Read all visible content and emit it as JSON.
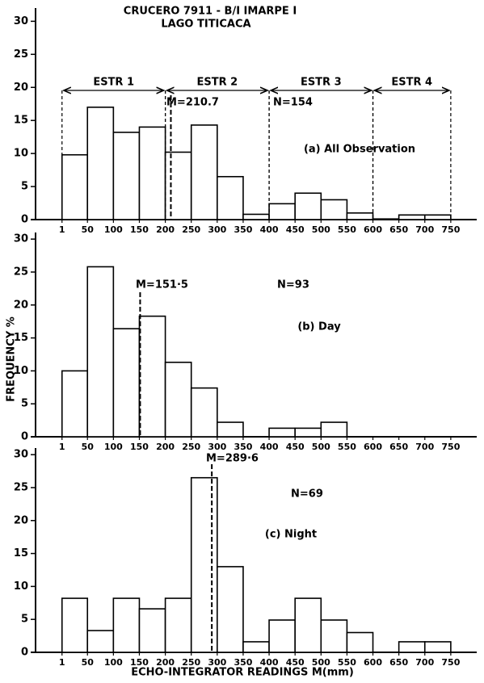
{
  "chart_data": [
    {
      "type": "histogram",
      "title": "CRUCERO 7911 - B/I IMARPE I",
      "subtitle": "LAGO TITICACA",
      "bins": [
        1,
        50,
        100,
        150,
        200,
        250,
        300,
        350,
        400,
        450,
        500,
        550,
        600,
        650,
        700,
        750
      ],
      "values": [
        9.8,
        17,
        13.2,
        14,
        10.2,
        14.3,
        6.5,
        0.8,
        2.4,
        4,
        3,
        1,
        0.1,
        0.7,
        0.7
      ],
      "xlim": [
        -50,
        800
      ],
      "xticks": [
        1,
        50,
        100,
        150,
        200,
        250,
        300,
        350,
        400,
        450,
        500,
        550,
        600,
        650,
        700,
        750
      ],
      "ylim": [
        0,
        32
      ],
      "yticks": [
        0,
        5,
        10,
        15,
        20,
        25,
        30
      ],
      "grid": false,
      "color": "#ffffff",
      "mean": {
        "value": 210.7,
        "label": "M=210.7"
      },
      "n_label": "N=154",
      "panel_label": "(a) All Observation",
      "strata": [
        {
          "label": "ESTR 1",
          "range": [
            1,
            200
          ]
        },
        {
          "label": "ESTR 2",
          "range": [
            200,
            400
          ]
        },
        {
          "label": "ESTR 3",
          "range": [
            400,
            600
          ]
        },
        {
          "label": "ESTR 4",
          "range": [
            600,
            750
          ]
        }
      ]
    },
    {
      "type": "histogram",
      "ylabel": "FREQUENCY %",
      "bins": [
        1,
        50,
        100,
        150,
        200,
        250,
        300,
        350,
        400,
        450,
        500,
        550,
        600,
        650,
        700,
        750
      ],
      "values": [
        10,
        25.8,
        16.4,
        18.3,
        11.3,
        7.4,
        2.2,
        0,
        1.3,
        1.3,
        2.2,
        0,
        0,
        0,
        0
      ],
      "xlim": [
        -50,
        800
      ],
      "xticks": [
        1,
        50,
        100,
        150,
        200,
        250,
        300,
        350,
        400,
        450,
        500,
        550,
        600,
        650,
        700,
        750
      ],
      "ylim": [
        0,
        31
      ],
      "yticks": [
        0,
        5,
        10,
        15,
        20,
        25,
        30
      ],
      "grid": false,
      "color": "#ffffff",
      "mean": {
        "value": 151.5,
        "label": "M=151·5"
      },
      "n_label": "N=93",
      "panel_label": "(b) Day"
    },
    {
      "type": "histogram",
      "xlabel": "ECHO-INTEGRATOR READINGS M(mm)",
      "bins": [
        1,
        50,
        100,
        150,
        200,
        250,
        300,
        350,
        400,
        450,
        500,
        550,
        600,
        650,
        700,
        750
      ],
      "values": [
        8.2,
        3.3,
        8.2,
        6.6,
        8.2,
        26.5,
        13,
        1.6,
        4.9,
        8.2,
        4.9,
        3,
        0,
        1.6,
        1.6
      ],
      "xlim": [
        -50,
        800
      ],
      "xticks": [
        1,
        50,
        100,
        150,
        200,
        250,
        300,
        350,
        400,
        450,
        500,
        550,
        600,
        650,
        700,
        750
      ],
      "ylim": [
        0,
        31
      ],
      "yticks": [
        0,
        5,
        10,
        15,
        20,
        25,
        30
      ],
      "grid": false,
      "color": "#ffffff",
      "mean": {
        "value": 289.6,
        "label": "M=289·6"
      },
      "n_label": "N=69",
      "panel_label": "(c) Night"
    }
  ]
}
